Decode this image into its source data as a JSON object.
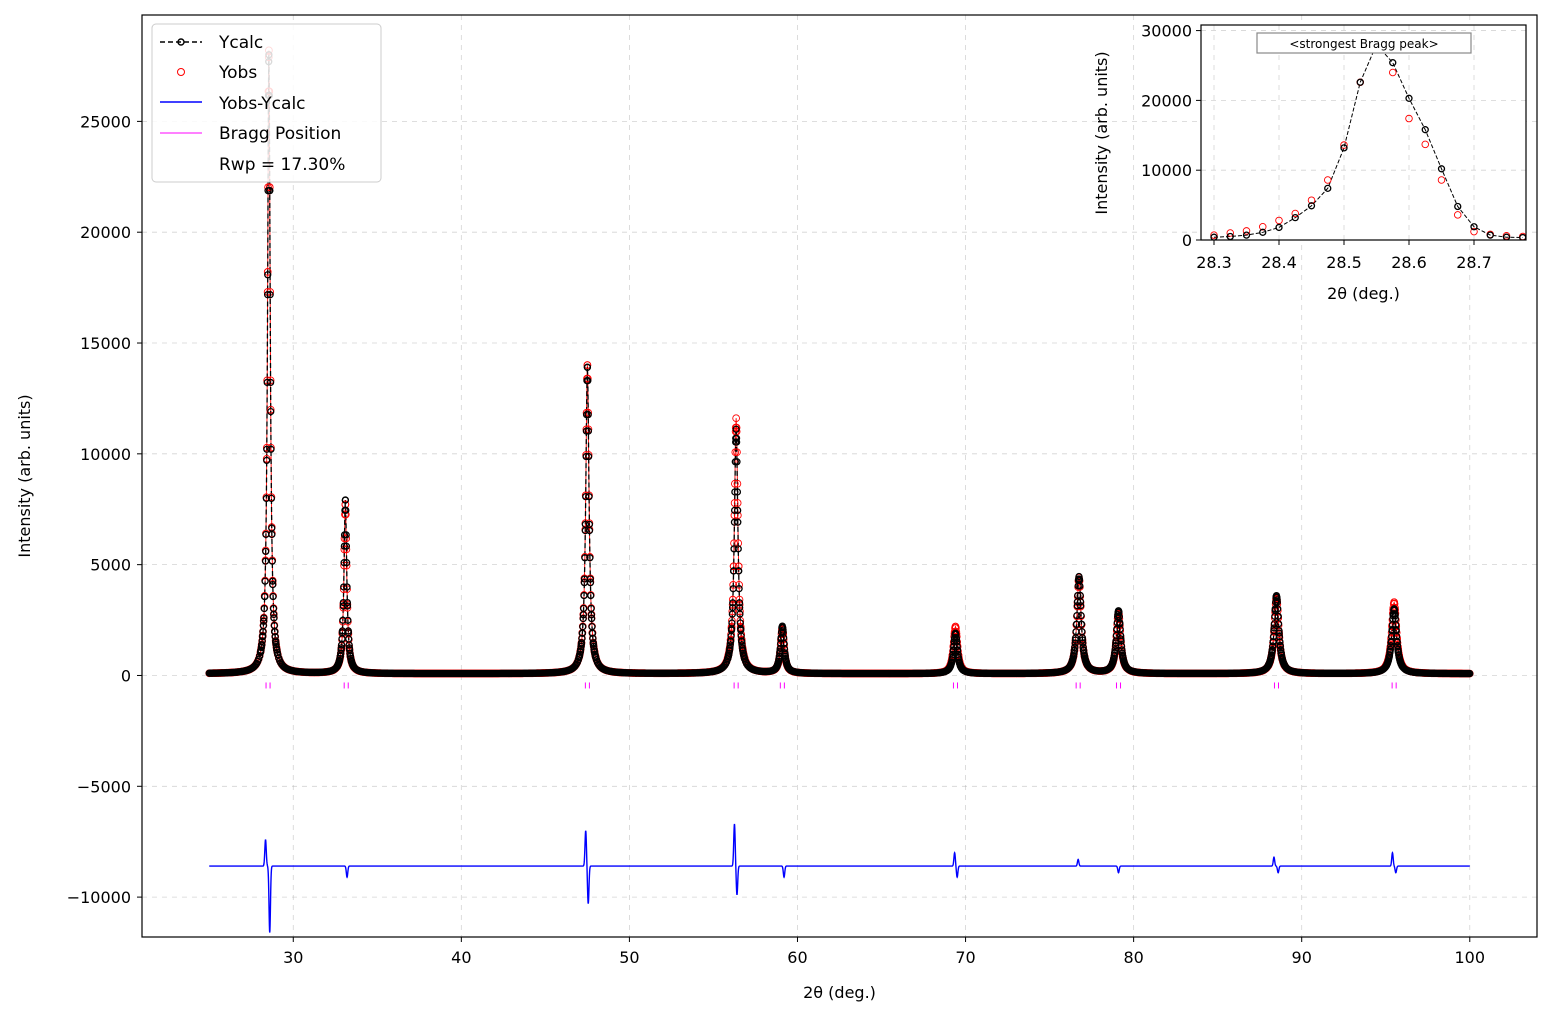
{
  "chart_data": [
    {
      "type": "line",
      "role": "main",
      "xlabel": "2θ (deg.)",
      "ylabel": "Intensity (arb. units)",
      "xlim": [
        21,
        104
      ],
      "ylim": [
        -11800,
        29800
      ],
      "xticks": [
        30,
        40,
        50,
        60,
        70,
        80,
        90,
        100
      ],
      "yticks": [
        -10000,
        -5000,
        0,
        5000,
        10000,
        15000,
        20000,
        25000
      ],
      "x_tick_labels": [
        "30",
        "40",
        "50",
        "60",
        "70",
        "80",
        "90",
        "100"
      ],
      "y_tick_labels": [
        "−10000",
        "−5000",
        "0",
        "5000",
        "10000",
        "15000",
        "20000",
        "25000"
      ],
      "grid": true,
      "legend": {
        "position": "upper-left",
        "entries": [
          "Ycalc",
          "Yobs",
          "Yobs-Ycalc",
          "Bragg Position"
        ],
        "extra_text": "Rwp = 17.30%"
      },
      "x_range": [
        25,
        100
      ],
      "background": 80,
      "difference_offset": -8600,
      "peaks": [
        {
          "position": 28.55,
          "ycalc": 28000,
          "yobs": 28200
        },
        {
          "position": 33.1,
          "ycalc": 7900,
          "yobs": 7700
        },
        {
          "position": 47.5,
          "ycalc": 13900,
          "yobs": 14000
        },
        {
          "position": 56.35,
          "ycalc": 11100,
          "yobs": 11600
        },
        {
          "position": 59.1,
          "ycalc": 2200,
          "yobs": 2100
        },
        {
          "position": 69.4,
          "ycalc": 1900,
          "yobs": 2200
        },
        {
          "position": 76.75,
          "ycalc": 4450,
          "yobs": 4400
        },
        {
          "position": 79.1,
          "ycalc": 2900,
          "yobs": 2800
        },
        {
          "position": 88.5,
          "ycalc": 3600,
          "yobs": 3500
        },
        {
          "position": 95.5,
          "ycalc": 3000,
          "yobs": 3300
        }
      ],
      "bragg_positions": [
        28.5,
        33.15,
        47.5,
        56.35,
        59.1,
        69.4,
        76.7,
        79.1,
        88.5,
        95.5
      ],
      "difference_spikes": [
        {
          "position": 28.35,
          "value": -7400
        },
        {
          "position": 28.6,
          "value": -11600
        },
        {
          "position": 33.2,
          "value": -9100
        },
        {
          "position": 47.4,
          "value": -7000
        },
        {
          "position": 47.55,
          "value": -10300
        },
        {
          "position": 56.25,
          "value": -6700
        },
        {
          "position": 56.4,
          "value": -9900
        },
        {
          "position": 59.2,
          "value": -9100
        },
        {
          "position": 69.35,
          "value": -8000
        },
        {
          "position": 69.5,
          "value": -9100
        },
        {
          "position": 76.7,
          "value": -8300
        },
        {
          "position": 79.1,
          "value": -8900
        },
        {
          "position": 88.35,
          "value": -8200
        },
        {
          "position": 88.6,
          "value": -8900
        },
        {
          "position": 95.4,
          "value": -8000
        },
        {
          "position": 95.6,
          "value": -8900
        }
      ],
      "series": [
        {
          "name": "Ycalc",
          "style": "black dashed line with circle markers",
          "color": "#000000"
        },
        {
          "name": "Yobs",
          "style": "red open circles",
          "color": "#ff0000"
        },
        {
          "name": "Yobs-Ycalc",
          "style": "blue solid line",
          "color": "#0000ff"
        },
        {
          "name": "Bragg Position",
          "style": "magenta ticks",
          "color": "#ff00ff"
        }
      ]
    },
    {
      "type": "line",
      "role": "inset",
      "xlabel": "2θ (deg.)",
      "ylabel": "Intensity (arb. units)",
      "xlim": [
        28.28,
        28.78
      ],
      "ylim": [
        0,
        30800
      ],
      "xticks": [
        28.3,
        28.4,
        28.5,
        28.6,
        28.7
      ],
      "yticks": [
        0,
        10000,
        20000,
        30000
      ],
      "x_tick_labels": [
        "28.3",
        "28.4",
        "28.5",
        "28.6",
        "28.7"
      ],
      "y_tick_labels": [
        "0",
        "10000",
        "20000",
        "30000"
      ],
      "grid": true,
      "annotation": "<strongest Bragg peak>",
      "x": [
        28.3,
        28.325,
        28.35,
        28.375,
        28.4,
        28.425,
        28.45,
        28.475,
        28.5,
        28.525,
        28.55,
        28.575,
        28.6,
        28.625,
        28.65,
        28.675,
        28.7,
        28.725,
        28.75,
        28.775
      ],
      "series": [
        {
          "name": "Ycalc",
          "color": "#000000",
          "values": [
            400,
            500,
            700,
            1100,
            1800,
            3200,
            4900,
            7400,
            13200,
            22600,
            28000,
            25400,
            20300,
            15800,
            10200,
            4800,
            1900,
            700,
            400,
            350
          ]
        },
        {
          "name": "Yobs",
          "color": "#ff0000",
          "values": [
            700,
            1000,
            1300,
            1900,
            2800,
            3800,
            5700,
            8600,
            13600,
            22600,
            28200,
            24000,
            17400,
            13700,
            8600,
            3600,
            1200,
            800,
            600,
            500
          ]
        }
      ]
    }
  ]
}
